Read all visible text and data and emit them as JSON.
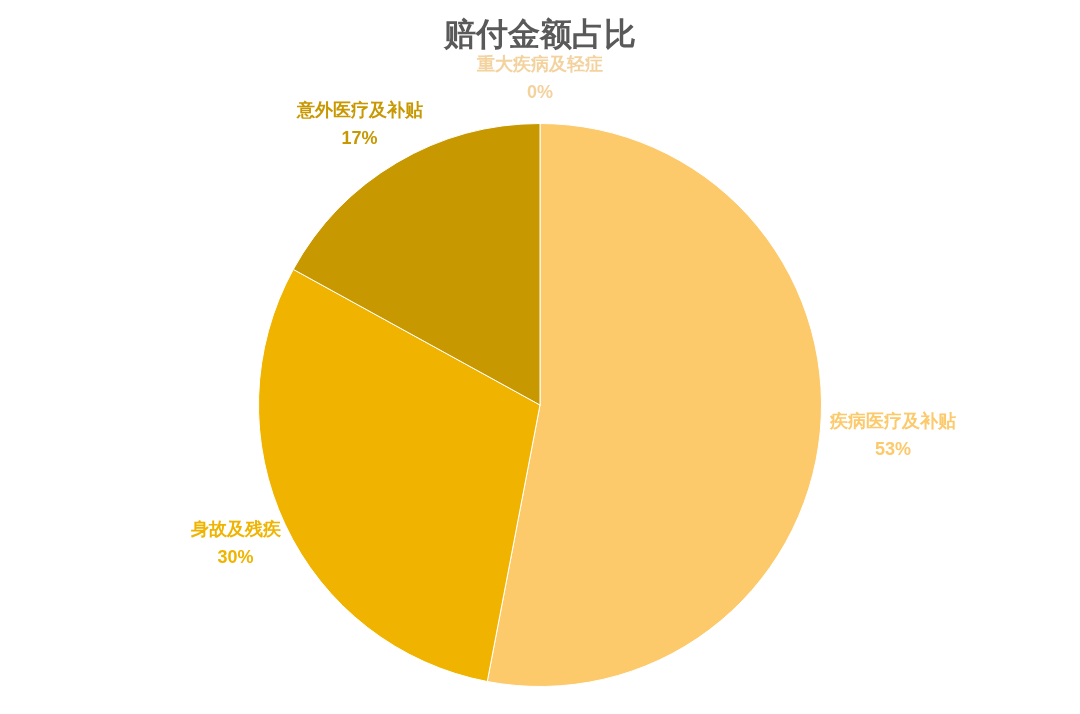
{
  "chart_data": {
    "type": "pie",
    "title": "赔付金额占比",
    "categories": [
      "重大疾病及轻症",
      "疾病医疗及补贴",
      "身故及残疾",
      "意外医疗及补贴"
    ],
    "values": [
      0,
      53,
      30,
      17
    ],
    "colors": [
      "#f3d29e",
      "#fcc96b",
      "#f0b400",
      "#c89800"
    ],
    "value_labels": [
      "0%",
      "53%",
      "30%",
      "17%"
    ],
    "legend": false
  }
}
